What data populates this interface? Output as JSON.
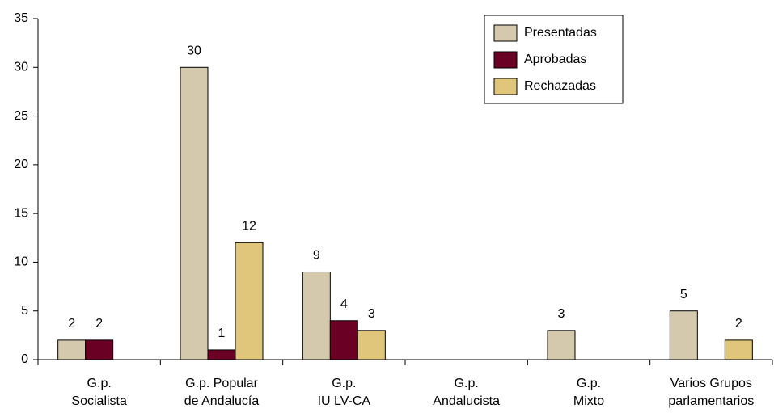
{
  "chart_data": {
    "type": "bar",
    "categories": [
      [
        "G.p.",
        "Socialista"
      ],
      [
        "G.p. Popular",
        "de Andalucía"
      ],
      [
        "G.p.",
        "IU LV-CA"
      ],
      [
        "G.p.",
        "Andalucista"
      ],
      [
        "G.p.",
        "Mixto"
      ],
      [
        "Varios Grupos",
        "parlamentarios"
      ]
    ],
    "series": [
      {
        "name": "Presentadas",
        "color": "#d4c9ad",
        "values": [
          2,
          30,
          9,
          null,
          3,
          5
        ]
      },
      {
        "name": "Aprobadas",
        "color": "#6b0025",
        "values": [
          2,
          1,
          4,
          null,
          null,
          null
        ]
      },
      {
        "name": "Rechazadas",
        "color": "#dfc67a",
        "values": [
          null,
          12,
          3,
          null,
          null,
          2
        ]
      }
    ],
    "ylim": [
      0,
      35
    ],
    "yticks": [
      0,
      5,
      10,
      15,
      20,
      25,
      30,
      35
    ],
    "legend": "upper-right"
  }
}
